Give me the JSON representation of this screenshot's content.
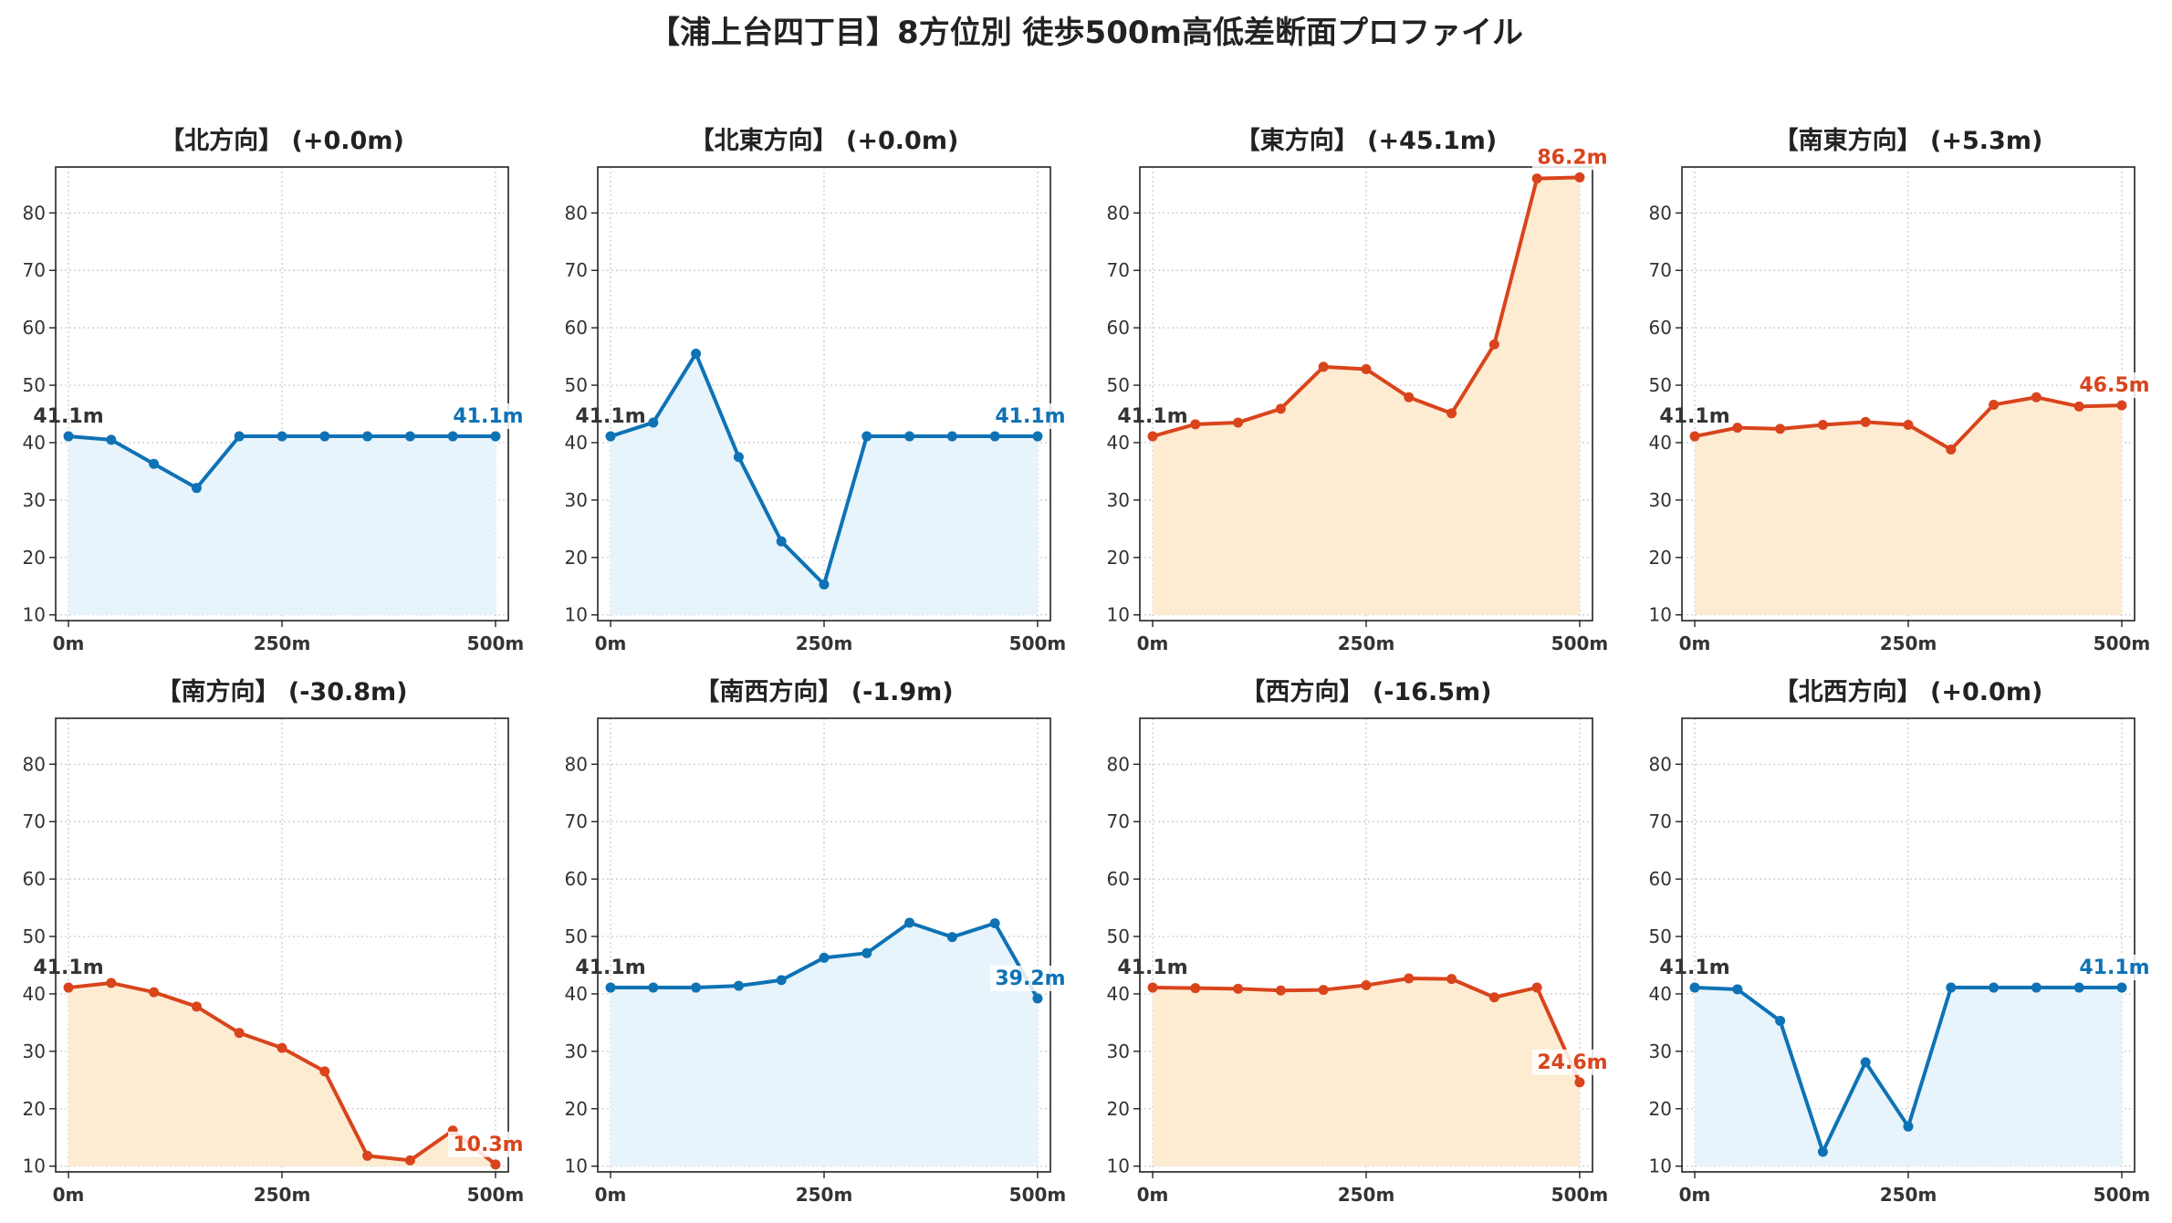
{
  "title": "【浦上台四丁目】8方位別 徒歩500m高低差断面プロファイル",
  "colors": {
    "up": "#d9441c",
    "up_fill": "#fdebd2",
    "down": "#0e72b5",
    "down_fill": "#e7f4fb",
    "grid": "#c8c8c8",
    "axis": "#222222",
    "start_label": "#333333"
  },
  "chart_data": [
    {
      "type": "area",
      "title": "【北方向】 (+0.0m)",
      "x": [
        0,
        50,
        100,
        150,
        200,
        250,
        300,
        350,
        400,
        450,
        500
      ],
      "values": [
        41.1,
        40.5,
        36.3,
        32.1,
        41.1,
        41.1,
        41.1,
        41.1,
        41.1,
        41.1,
        41.1
      ],
      "trend": "down",
      "start_label": "41.1m",
      "end_label": "41.1m",
      "ylim": [
        9,
        88
      ],
      "yticks": [
        10,
        20,
        30,
        40,
        50,
        60,
        70,
        80
      ],
      "xticks": [
        0,
        250,
        500
      ],
      "xtick_labels": [
        "0m",
        "250m",
        "500m"
      ],
      "grid": true
    },
    {
      "type": "area",
      "title": "【北東方向】 (+0.0m)",
      "x": [
        0,
        50,
        100,
        150,
        200,
        250,
        300,
        350,
        400,
        450,
        500
      ],
      "values": [
        41.1,
        43.5,
        55.5,
        37.5,
        22.8,
        15.3,
        41.1,
        41.1,
        41.1,
        41.1,
        41.1
      ],
      "trend": "down",
      "start_label": "41.1m",
      "end_label": "41.1m",
      "ylim": [
        9,
        88
      ],
      "yticks": [
        10,
        20,
        30,
        40,
        50,
        60,
        70,
        80
      ],
      "xticks": [
        0,
        250,
        500
      ],
      "xtick_labels": [
        "0m",
        "250m",
        "500m"
      ],
      "grid": true
    },
    {
      "type": "area",
      "title": "【東方向】 (+45.1m)",
      "x": [
        0,
        50,
        100,
        150,
        200,
        250,
        300,
        350,
        400,
        450,
        500
      ],
      "values": [
        41.1,
        43.2,
        43.5,
        45.9,
        53.2,
        52.8,
        47.9,
        45.1,
        57.1,
        86.0,
        86.2
      ],
      "trend": "up",
      "start_label": "41.1m",
      "end_label": "86.2m",
      "ylim": [
        9,
        88
      ],
      "yticks": [
        10,
        20,
        30,
        40,
        50,
        60,
        70,
        80
      ],
      "xticks": [
        0,
        250,
        500
      ],
      "xtick_labels": [
        "0m",
        "250m",
        "500m"
      ],
      "grid": true
    },
    {
      "type": "area",
      "title": "【南東方向】 (+5.3m)",
      "x": [
        0,
        50,
        100,
        150,
        200,
        250,
        300,
        350,
        400,
        450,
        500
      ],
      "values": [
        41.1,
        42.6,
        42.4,
        43.1,
        43.6,
        43.1,
        38.8,
        46.6,
        47.9,
        46.3,
        46.5
      ],
      "trend": "up",
      "start_label": "41.1m",
      "end_label": "46.5m",
      "ylim": [
        9,
        88
      ],
      "yticks": [
        10,
        20,
        30,
        40,
        50,
        60,
        70,
        80
      ],
      "xticks": [
        0,
        250,
        500
      ],
      "xtick_labels": [
        "0m",
        "250m",
        "500m"
      ],
      "grid": true
    },
    {
      "type": "area",
      "title": "【南方向】 (-30.8m)",
      "x": [
        0,
        50,
        100,
        150,
        200,
        250,
        300,
        350,
        400,
        450,
        500
      ],
      "values": [
        41.1,
        41.9,
        40.3,
        37.8,
        33.2,
        30.6,
        26.5,
        11.8,
        11.0,
        16.2,
        10.3
      ],
      "trend": "up",
      "start_label": "41.1m",
      "end_label": "10.3m",
      "ylim": [
        9,
        88
      ],
      "yticks": [
        10,
        20,
        30,
        40,
        50,
        60,
        70,
        80
      ],
      "xticks": [
        0,
        250,
        500
      ],
      "xtick_labels": [
        "0m",
        "250m",
        "500m"
      ],
      "grid": true
    },
    {
      "type": "area",
      "title": "【南西方向】 (-1.9m)",
      "x": [
        0,
        50,
        100,
        150,
        200,
        250,
        300,
        350,
        400,
        450,
        500
      ],
      "values": [
        41.1,
        41.1,
        41.1,
        41.4,
        42.4,
        46.3,
        47.1,
        52.4,
        49.9,
        52.3,
        39.2
      ],
      "trend": "down",
      "start_label": "41.1m",
      "end_label": "39.2m",
      "ylim": [
        9,
        88
      ],
      "yticks": [
        10,
        20,
        30,
        40,
        50,
        60,
        70,
        80
      ],
      "xticks": [
        0,
        250,
        500
      ],
      "xtick_labels": [
        "0m",
        "250m",
        "500m"
      ],
      "grid": true
    },
    {
      "type": "area",
      "title": "【西方向】 (-16.5m)",
      "x": [
        0,
        50,
        100,
        150,
        200,
        250,
        300,
        350,
        400,
        450,
        500
      ],
      "values": [
        41.1,
        41.0,
        40.9,
        40.6,
        40.7,
        41.5,
        42.7,
        42.6,
        39.4,
        41.1,
        24.6
      ],
      "trend": "up",
      "start_label": "41.1m",
      "end_label": "24.6m",
      "ylim": [
        9,
        88
      ],
      "yticks": [
        10,
        20,
        30,
        40,
        50,
        60,
        70,
        80
      ],
      "xticks": [
        0,
        250,
        500
      ],
      "xtick_labels": [
        "0m",
        "250m",
        "500m"
      ],
      "grid": true
    },
    {
      "type": "area",
      "title": "【北西方向】 (+0.0m)",
      "x": [
        0,
        50,
        100,
        150,
        200,
        250,
        300,
        350,
        400,
        450,
        500
      ],
      "values": [
        41.1,
        40.8,
        35.3,
        12.5,
        28.1,
        16.9,
        41.1,
        41.1,
        41.1,
        41.1,
        41.1
      ],
      "trend": "down",
      "start_label": "41.1m",
      "end_label": "41.1m",
      "ylim": [
        9,
        88
      ],
      "yticks": [
        10,
        20,
        30,
        40,
        50,
        60,
        70,
        80
      ],
      "xticks": [
        0,
        250,
        500
      ],
      "xtick_labels": [
        "0m",
        "250m",
        "500m"
      ],
      "grid": true
    }
  ]
}
